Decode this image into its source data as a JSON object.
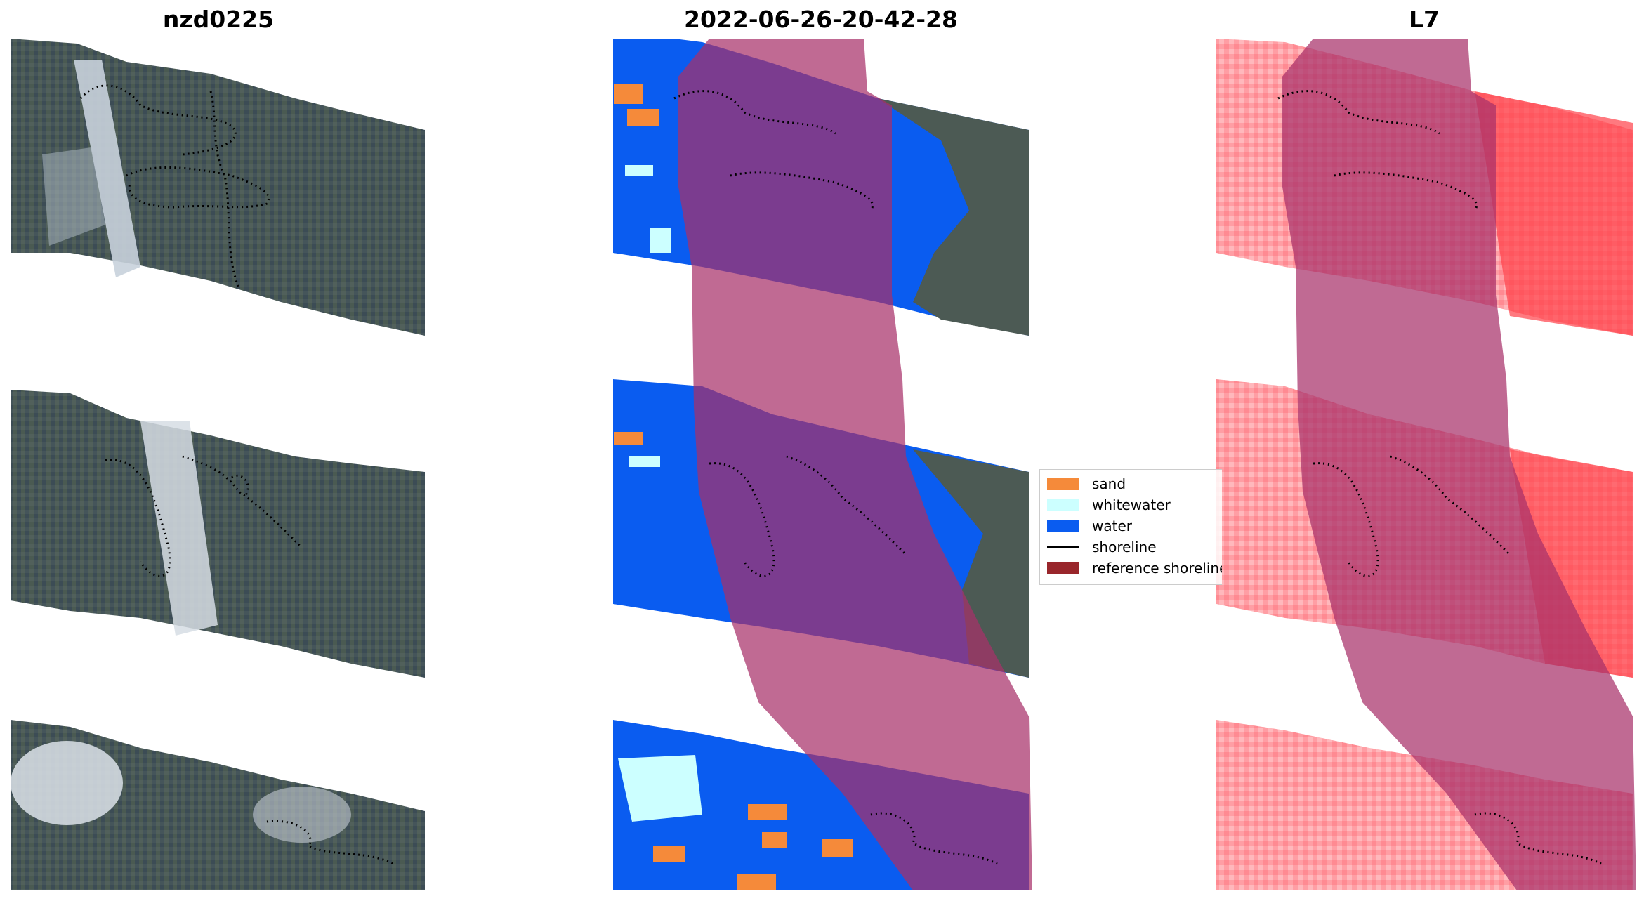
{
  "panels": [
    {
      "title": "nzd0225"
    },
    {
      "title": "2022-06-26-20-42-28"
    },
    {
      "title": "L7"
    }
  ],
  "legend": {
    "items": [
      {
        "label": "sand",
        "color": "#f58a3a",
        "kind": "patch"
      },
      {
        "label": "whitewater",
        "color": "#ccffff",
        "kind": "patch"
      },
      {
        "label": "water",
        "color": "#0a5cf0",
        "kind": "patch"
      },
      {
        "label": "shoreline",
        "color": "#000000",
        "kind": "line"
      },
      {
        "label": "reference shoreline",
        "color": "#99262b",
        "kind": "patch"
      }
    ]
  },
  "colors": {
    "ocean_dark": "#3a4d5a",
    "forest": "#4c5a54",
    "surf": "#c8d2dc",
    "water_class": "#0a5cf0",
    "buffer": "#a8306a",
    "heat_light": "#ffd2d4",
    "heat_strong": "#ff3038"
  }
}
